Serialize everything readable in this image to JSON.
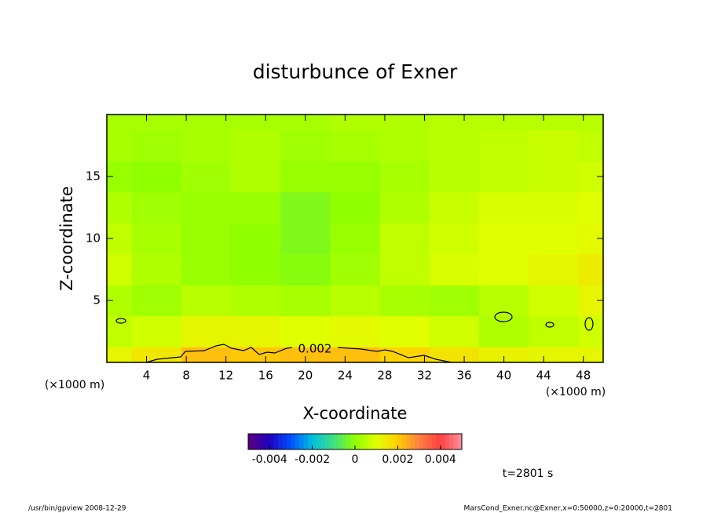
{
  "chart_data": {
    "type": "contour",
    "title": "disturbunce of Exner",
    "x_label": "X-coordinate",
    "y_label": "Z-coordinate",
    "x_unit": "(×1000 m)",
    "xlim": [
      0,
      50
    ],
    "ylim": [
      0,
      20
    ],
    "xticks": [
      4,
      8,
      12,
      16,
      20,
      24,
      28,
      32,
      36,
      40,
      44,
      48
    ],
    "yticks": [
      5,
      10,
      15
    ],
    "x": [
      0,
      5,
      10,
      15,
      20,
      25,
      30,
      35,
      40,
      45,
      50
    ],
    "z": [
      0,
      2.5,
      5,
      7.5,
      10,
      12.5,
      15,
      17.5,
      20
    ],
    "values": [
      [
        0.0012,
        0.0015,
        0.0022,
        0.0021,
        0.0022,
        0.0022,
        0.0019,
        0.0016,
        0.0013,
        0.0012,
        0.0012
      ],
      [
        0.0006,
        0.0008,
        0.0012,
        0.0012,
        0.001,
        0.0011,
        0.001,
        0.0008,
        0.0004,
        0.0006,
        0.0008
      ],
      [
        0.0004,
        0.0002,
        0.0005,
        0.0004,
        0.0003,
        0.0005,
        0.0003,
        0.0002,
        0.0005,
        0.0008,
        0.0012
      ],
      [
        0.0008,
        0.0004,
        0.0001,
        0.0,
        -0.0001,
        0.0002,
        0.0006,
        0.0009,
        0.001,
        0.0012,
        0.0014
      ],
      [
        0.0006,
        0.0003,
        0.0001,
        0.0,
        -0.0002,
        0.0001,
        0.0006,
        0.0008,
        0.001,
        0.001,
        0.0011
      ],
      [
        0.0004,
        0.0002,
        0.0001,
        0.0001,
        -0.0002,
        0.0,
        0.0004,
        0.0007,
        0.0009,
        0.0009,
        0.001
      ],
      [
        0.0001,
        0.0,
        0.0002,
        0.0004,
        0.0001,
        0.0001,
        0.0003,
        0.0005,
        0.0006,
        0.0007,
        0.0008
      ],
      [
        0.0003,
        0.0002,
        0.0003,
        0.0004,
        0.0002,
        0.0003,
        0.0004,
        0.0005,
        0.0006,
        0.0007,
        0.0006
      ],
      [
        0.0003,
        0.0003,
        0.0003,
        0.0003,
        0.0003,
        0.0004,
        0.0004,
        0.0005,
        0.0005,
        0.0005,
        0.0005
      ]
    ],
    "contour_level": 0.002,
    "clim": [
      -0.005,
      0.005
    ],
    "cticks": [
      -0.004,
      -0.002,
      0,
      0.002,
      0.004
    ],
    "colormap": [
      "#5a0080",
      "#2000c0",
      "#0050ff",
      "#00c0e0",
      "#40e080",
      "#90ff00",
      "#e0ff00",
      "#ffd000",
      "#ff8040",
      "#ff4040",
      "#ff90a0"
    ],
    "time_note": "t=2801 s",
    "footer_left": "/usr/bin/gpview   2008-12-29",
    "footer_right": "MarsCond_Exner.nc@Exner,x=0:50000,z=0:20000,t=2801"
  }
}
